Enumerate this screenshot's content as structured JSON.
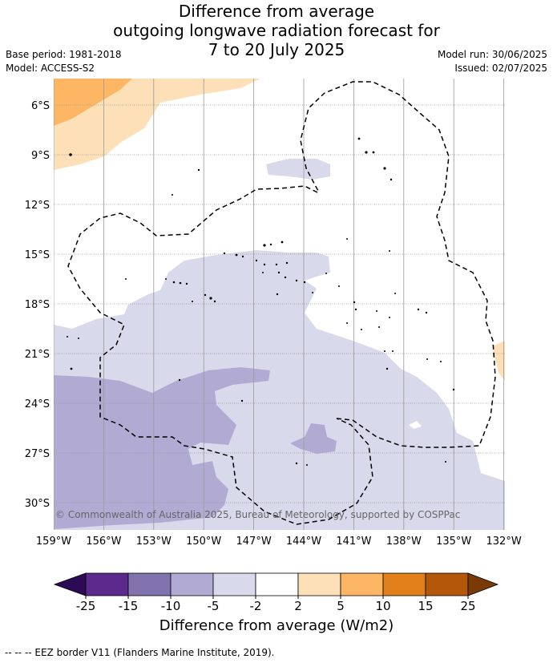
{
  "title_lines": [
    "Difference from average",
    "outgoing longwave radiation forecast for",
    "7 to 20 July 2025"
  ],
  "meta": {
    "base_period": "Base period: 1981-2018",
    "model": "Model: ACCESS-S2",
    "model_run": "Model run: 30/06/2025",
    "issued": "Issued: 02/07/2025"
  },
  "map": {
    "lon_labels": [
      "159°W",
      "156°W",
      "153°W",
      "150°W",
      "147°W",
      "144°W",
      "141°W",
      "138°W",
      "135°W",
      "132°W"
    ],
    "lat_labels": [
      "6°S",
      "9°S",
      "12°S",
      "15°S",
      "18°S",
      "21°S",
      "24°S",
      "27°S",
      "30°S"
    ],
    "copyright": "© Commonwealth of Australia 2025, Bureau of Meteorology, supported by COSPPac",
    "colors": {
      "neg_5_2": "#d8d9ea",
      "neg_10_5": "#b1abd3",
      "pos_2_5": "#fde0b7",
      "pos_5_10": "#fdb664",
      "gridline": "#999999",
      "eez_border": "#000000"
    }
  },
  "colorbar": {
    "ticks": [
      "-25",
      "-15",
      "-10",
      "-5",
      "-2",
      "2",
      "5",
      "10",
      "15",
      "25"
    ],
    "colors": [
      "#2d0a55",
      "#5b2a8c",
      "#8173ad",
      "#b1abd3",
      "#d8d9ea",
      "#ffffff",
      "#fde0b7",
      "#fdb664",
      "#e1801b",
      "#b3580b",
      "#7a3a06"
    ],
    "title": "Difference from average (W/m2)"
  },
  "footnote": "--  --  -- EEZ border V11 (Flanders Marine Institute, 2019)."
}
